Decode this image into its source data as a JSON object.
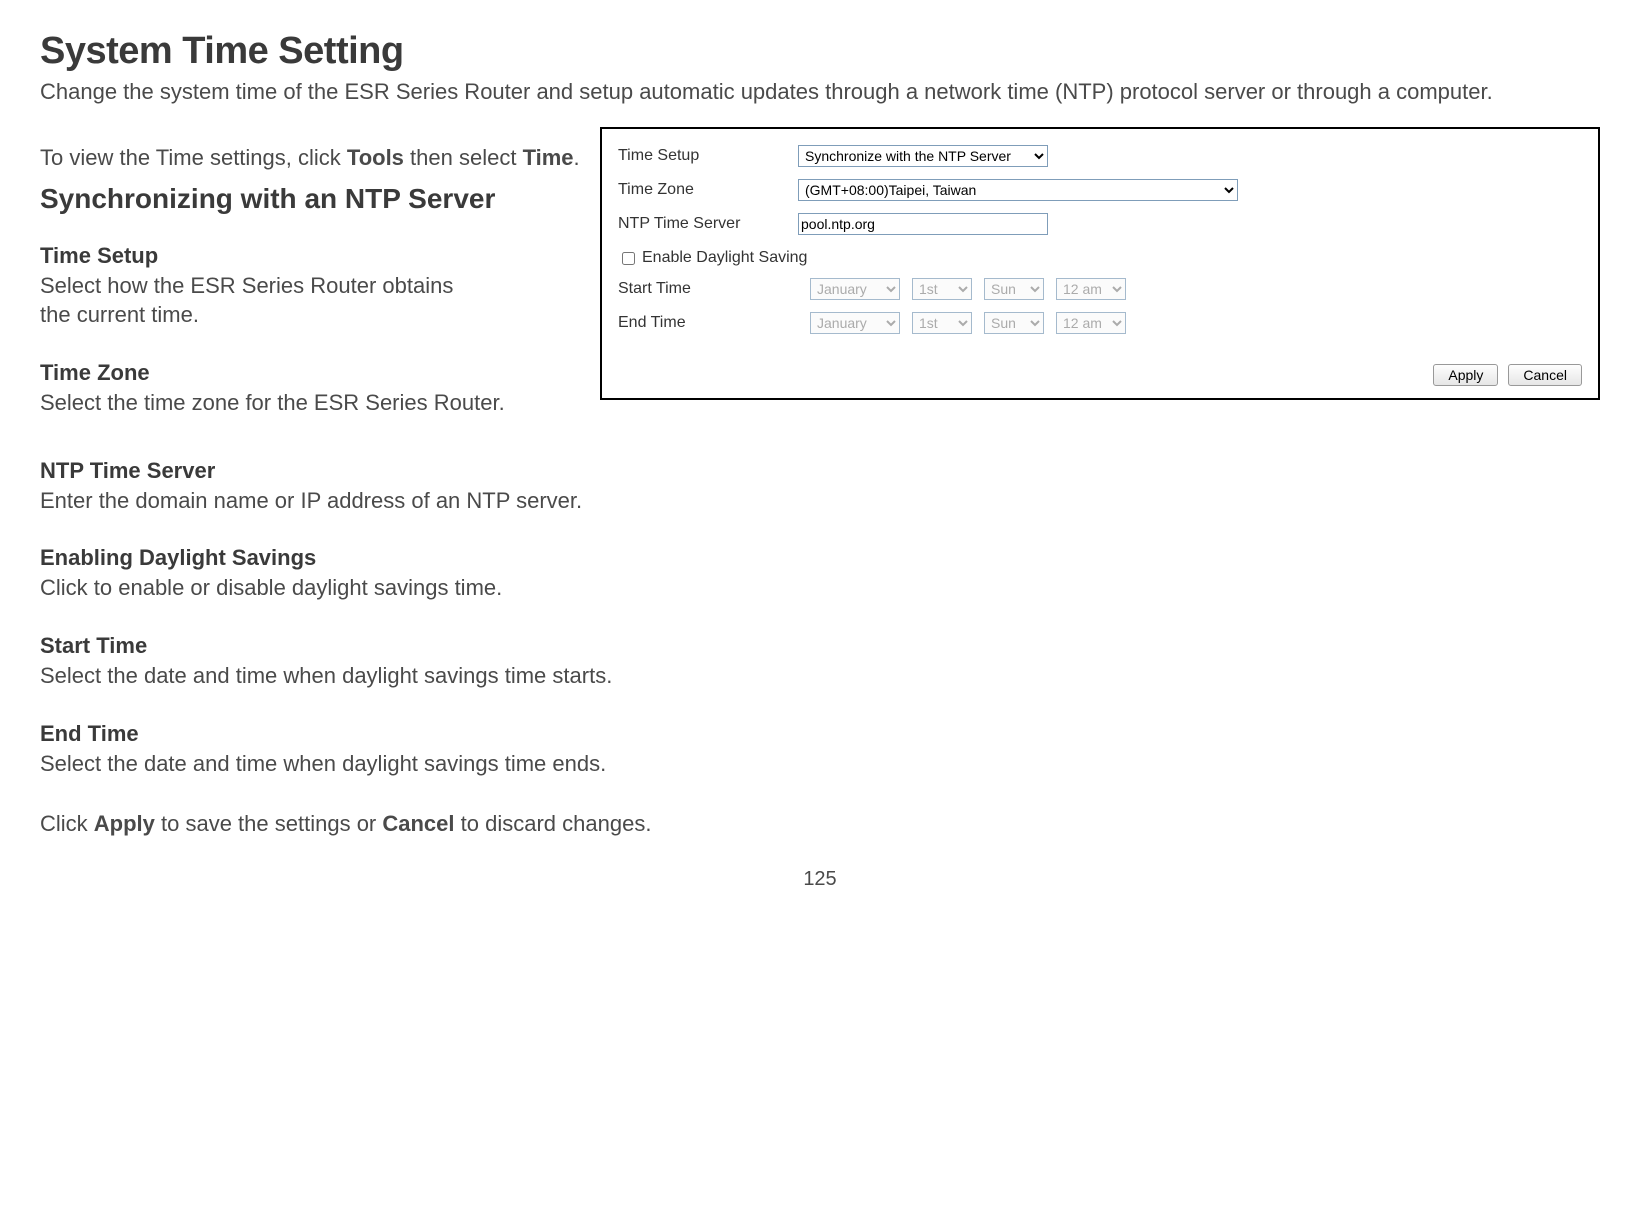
{
  "doc": {
    "title": "System Time Setting",
    "intro": "Change the system time of the ESR Series Router and setup automatic updates through a network time (NTP) protocol server or through a computer.",
    "viewInstr_pre": "To view the Time settings, click ",
    "viewInstr_b1": "Tools",
    "viewInstr_mid": " then select ",
    "viewInstr_b2": "Time",
    "viewInstr_post": ".",
    "subheading": "Synchronizing with an NTP Server",
    "sections": {
      "timeSetup": {
        "h": "Time Setup",
        "d1": "Select how the ESR Series Router obtains",
        "d2": "the current time."
      },
      "timeZone": {
        "h": "Time Zone",
        "d": "Select the time zone for the ESR Series Router."
      },
      "ntp": {
        "h": "NTP Time Server",
        "d": "Enter the domain name or IP address of an NTP server."
      },
      "dst": {
        "h": "Enabling Daylight Savings",
        "d": "Click to enable or disable daylight savings time."
      },
      "start": {
        "h": "Start Time",
        "d": "Select the date and time when daylight savings time starts."
      },
      "end": {
        "h": "End Time",
        "d": "Select the date and time when daylight savings time ends."
      }
    },
    "footer_pre": "Click ",
    "footer_b1": "Apply",
    "footer_mid": " to save the settings or ",
    "footer_b2": "Cancel",
    "footer_post": " to discard changes.",
    "pageNum": "125"
  },
  "form": {
    "labels": {
      "timeSetup": "Time Setup",
      "timeZone": "Time Zone",
      "ntpServer": "NTP Time Server",
      "enableDst": "Enable Daylight Saving",
      "startTime": "Start Time",
      "endTime": "End Time"
    },
    "values": {
      "timeSetup": "Synchronize with the NTP Server",
      "timeZone": "(GMT+08:00)Taipei, Taiwan",
      "ntpServer": "pool.ntp.org",
      "dstChecked": false,
      "start": {
        "month": "January",
        "day": "1st",
        "dow": "Sun",
        "hour": "12 am"
      },
      "end": {
        "month": "January",
        "day": "1st",
        "dow": "Sun",
        "hour": "12 am"
      }
    },
    "buttons": {
      "apply": "Apply",
      "cancel": "Cancel"
    }
  }
}
